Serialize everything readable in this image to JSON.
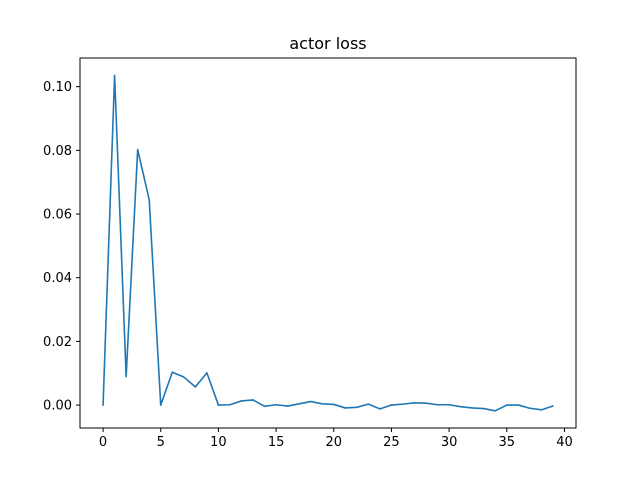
{
  "chart_data": {
    "type": "line",
    "title": "actor loss",
    "xlabel": "",
    "ylabel": "",
    "xlim": [
      -2,
      41
    ],
    "ylim": [
      -0.0072,
      0.109
    ],
    "xticks": [
      0,
      5,
      10,
      15,
      20,
      25,
      30,
      35,
      40
    ],
    "xtick_labels": [
      "0",
      "5",
      "10",
      "15",
      "20",
      "25",
      "30",
      "35",
      "40"
    ],
    "yticks": [
      0.0,
      0.02,
      0.04,
      0.06,
      0.08,
      0.1
    ],
    "ytick_labels": [
      "0.00",
      "0.02",
      "0.04",
      "0.06",
      "0.08",
      "0.10"
    ],
    "grid": false,
    "series": [
      {
        "color": "#1f77b4",
        "x": [
          0,
          1,
          2,
          3,
          4,
          5,
          6,
          7,
          8,
          9,
          10,
          11,
          12,
          13,
          14,
          15,
          16,
          17,
          18,
          19,
          20,
          21,
          22,
          23,
          24,
          25,
          26,
          27,
          28,
          29,
          30,
          31,
          32,
          33,
          34,
          35,
          36,
          37,
          38,
          39
        ],
        "y": [
          0.0,
          0.1035,
          0.009,
          0.0802,
          0.0645,
          0.0,
          0.0103,
          0.0088,
          0.0057,
          0.0101,
          0.0,
          0.0001,
          0.0013,
          0.0016,
          -0.0004,
          0.0001,
          -0.0003,
          0.0004,
          0.0011,
          0.0004,
          0.0002,
          -0.0009,
          -0.0007,
          0.0003,
          -0.0012,
          0.0,
          0.0003,
          0.0007,
          0.0006,
          0.0001,
          0.0001,
          -0.0005,
          -0.0009,
          -0.0011,
          -0.0018,
          0.0,
          0.0,
          -0.001,
          -0.0015,
          -0.0003
        ]
      }
    ]
  }
}
